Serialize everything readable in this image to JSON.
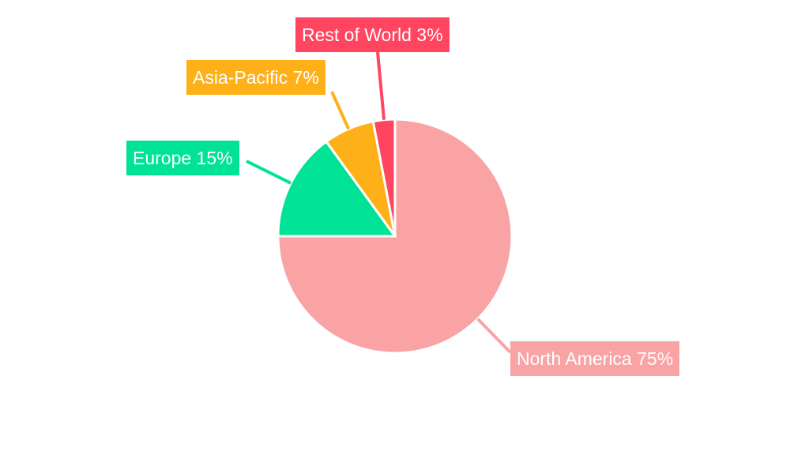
{
  "chart_data": {
    "type": "pie",
    "start_angle": "12 o'clock, clockwise",
    "slices": [
      {
        "label": "North America",
        "value": 75,
        "text": "North America 75%",
        "color": "#f9a3a4"
      },
      {
        "label": "Europe",
        "value": 15,
        "text": "Europe 15%",
        "color": "#00e396"
      },
      {
        "label": "Asia-Pacific",
        "value": 7,
        "text": "Asia-Pacific 7%",
        "color": "#feb019"
      },
      {
        "label": "Rest of World",
        "value": 3,
        "text": "Rest of World 3%",
        "color": "#ff4560"
      }
    ]
  }
}
